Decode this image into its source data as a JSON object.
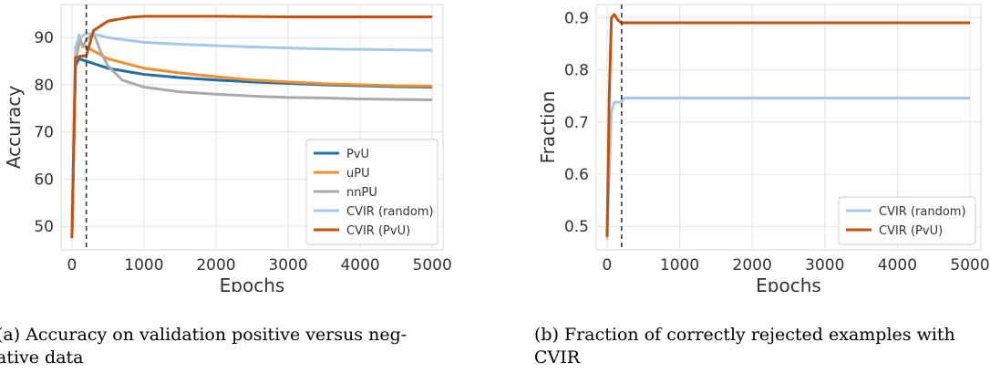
{
  "chart_data": [
    {
      "type": "line",
      "title": "",
      "xlabel": "Epochs",
      "ylabel": "Accuracy",
      "xlim": [
        -150,
        5150
      ],
      "ylim": [
        45,
        97
      ],
      "xticks": [
        0,
        1000,
        2000,
        3000,
        4000,
        5000
      ],
      "yticks": [
        50,
        60,
        70,
        80,
        90
      ],
      "grid": true,
      "vline": 200,
      "legend_position": "bottom-right",
      "series": [
        {
          "name": "PvU",
          "color": "#1e6ea7",
          "x": [
            0,
            50,
            100,
            200,
            500,
            1000,
            1500,
            2000,
            2500,
            3000,
            3500,
            4000,
            4500,
            5000
          ],
          "y": [
            47.5,
            84,
            85.5,
            85,
            83.5,
            82.2,
            81.5,
            81,
            80.6,
            80.3,
            80,
            79.8,
            79.6,
            79.5
          ]
        },
        {
          "name": "uPU",
          "color": "#f28e2b",
          "x": [
            0,
            50,
            100,
            200,
            500,
            1000,
            1500,
            2000,
            2500,
            3000,
            3500,
            4000,
            4500,
            5000
          ],
          "y": [
            47.5,
            85,
            89,
            88,
            85.5,
            83.5,
            82.5,
            81.7,
            81,
            80.6,
            80.2,
            80,
            79.8,
            79.7
          ]
        },
        {
          "name": "nnPU",
          "color": "#aaaaaa",
          "x": [
            0,
            50,
            100,
            150,
            200,
            300,
            400,
            500,
            700,
            1000,
            1500,
            2000,
            2500,
            3000,
            3500,
            4000,
            4500,
            5000
          ],
          "y": [
            47.5,
            86,
            90.5,
            88,
            89.5,
            91,
            87,
            84,
            81,
            79.5,
            78.5,
            78,
            77.6,
            77.3,
            77.2,
            77,
            76.9,
            76.8
          ]
        },
        {
          "name": "CVIR (random)",
          "color": "#a4c8e8",
          "x": [
            0,
            50,
            100,
            200,
            300,
            500,
            1000,
            1500,
            2000,
            2500,
            3000,
            3500,
            4000,
            4500,
            5000
          ],
          "y": [
            47.5,
            88,
            90,
            90.8,
            90.8,
            90,
            89,
            88.6,
            88.3,
            88,
            87.8,
            87.6,
            87.5,
            87.4,
            87.3
          ]
        },
        {
          "name": "CVIR (PvU)",
          "color": "#c4510e",
          "x": [
            0,
            50,
            100,
            200,
            300,
            500,
            800,
            1000,
            1500,
            2000,
            3000,
            4000,
            5000
          ],
          "y": [
            47.5,
            85.8,
            86,
            86.2,
            91.5,
            93.5,
            94.3,
            94.5,
            94.5,
            94.5,
            94.4,
            94.4,
            94.4
          ]
        }
      ]
    },
    {
      "type": "line",
      "title": "",
      "xlabel": "Epochs",
      "ylabel": "Fraction",
      "xlim": [
        -150,
        5150
      ],
      "ylim": [
        0.455,
        0.925
      ],
      "xticks": [
        0,
        1000,
        2000,
        3000,
        4000,
        5000
      ],
      "yticks": [
        0.5,
        0.6,
        0.7,
        0.8,
        0.9
      ],
      "grid": true,
      "vline": 200,
      "legend_position": "bottom-right",
      "series": [
        {
          "name": "CVIR (random)",
          "color": "#a4c8e8",
          "x": [
            0,
            30,
            60,
            100,
            150,
            200,
            230,
            5000
          ],
          "y": [
            0.475,
            0.6,
            0.72,
            0.738,
            0.738,
            0.738,
            0.746,
            0.746
          ]
        },
        {
          "name": "CVIR (PvU)",
          "color": "#c4510e",
          "x": [
            0,
            30,
            60,
            100,
            150,
            200,
            250,
            5000
          ],
          "y": [
            0.48,
            0.75,
            0.9,
            0.906,
            0.895,
            0.89,
            0.89,
            0.89
          ]
        }
      ]
    }
  ],
  "captions": {
    "a": "(a) Accuracy on validation positive versus negative data",
    "b": "(b) Fraction of correctly rejected examples with CVIR",
    "a_line1": "(a) Accuracy on validation positive versus neg-",
    "a_line2": "ative data",
    "b_line1": "(b) Fraction of correctly rejected examples with",
    "b_line2": "CVIR"
  }
}
